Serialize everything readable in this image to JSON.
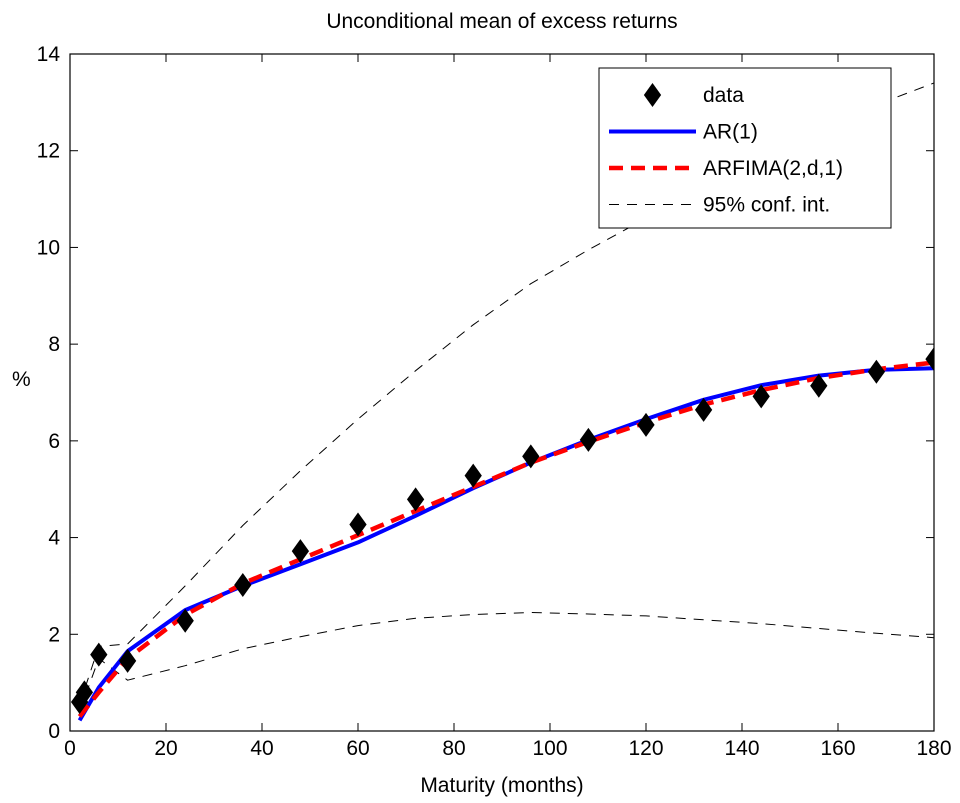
{
  "chart_data": {
    "type": "line",
    "title": "Unconditional mean of excess returns",
    "xlabel": "Maturity (months)",
    "ylabel": "%",
    "xlim": [
      0,
      180
    ],
    "ylim": [
      0,
      14
    ],
    "xticks": [
      0,
      20,
      40,
      60,
      80,
      100,
      120,
      140,
      160,
      180
    ],
    "yticks": [
      0,
      2,
      4,
      6,
      8,
      10,
      12,
      14
    ],
    "grid": false,
    "legend_position": "top-right",
    "series": [
      {
        "name": "data",
        "style": "markers",
        "marker": "diamond",
        "color": "#000000",
        "x": [
          2,
          3,
          6,
          12,
          24,
          36,
          48,
          60,
          72,
          84,
          96,
          108,
          120,
          132,
          144,
          156,
          168,
          180
        ],
        "y": [
          0.6,
          0.8,
          1.58,
          1.45,
          2.28,
          3.02,
          3.72,
          4.27,
          4.79,
          5.28,
          5.68,
          6.02,
          6.33,
          6.64,
          6.92,
          7.14,
          7.43,
          7.69
        ]
      },
      {
        "name": "AR(1)",
        "style": "solid",
        "color": "#0000ff",
        "x": [
          2,
          6,
          12,
          24,
          36,
          48,
          60,
          72,
          84,
          96,
          108,
          120,
          132,
          144,
          156,
          168,
          180
        ],
        "y": [
          0.22,
          0.9,
          1.65,
          2.5,
          3.0,
          3.45,
          3.9,
          4.45,
          5.02,
          5.55,
          6.02,
          6.45,
          6.85,
          7.15,
          7.35,
          7.47,
          7.5
        ]
      },
      {
        "name": "ARFIMA(2,d,1)",
        "style": "dashed",
        "color": "#ff0000",
        "x": [
          2,
          6,
          12,
          24,
          36,
          48,
          60,
          72,
          84,
          96,
          108,
          120,
          132,
          144,
          156,
          168,
          180
        ],
        "y": [
          0.3,
          0.8,
          1.5,
          2.4,
          3.05,
          3.55,
          4.05,
          4.55,
          5.05,
          5.55,
          5.98,
          6.38,
          6.75,
          7.05,
          7.3,
          7.48,
          7.62
        ]
      },
      {
        "name": "95% conf. int.",
        "style": "thin-dashed",
        "color": "#000000",
        "x": [
          2,
          6,
          12,
          24,
          36,
          48,
          60,
          72,
          84,
          96,
          108,
          120,
          132,
          144,
          156,
          168,
          180
        ],
        "y": [
          0.55,
          1.75,
          1.8,
          3.0,
          4.25,
          5.38,
          6.45,
          7.45,
          8.4,
          9.25,
          9.95,
          10.6,
          11.3,
          11.9,
          12.45,
          12.95,
          13.4
        ]
      },
      {
        "name": "",
        "style": "thin-dashed",
        "color": "#000000",
        "x": [
          2,
          6,
          12,
          24,
          36,
          48,
          60,
          72,
          84,
          96,
          108,
          120,
          132,
          144,
          156,
          168,
          180
        ],
        "y": [
          0.4,
          1.5,
          1.05,
          1.35,
          1.7,
          1.95,
          2.18,
          2.33,
          2.41,
          2.45,
          2.42,
          2.38,
          2.3,
          2.22,
          2.12,
          2.02,
          1.93
        ]
      }
    ]
  }
}
